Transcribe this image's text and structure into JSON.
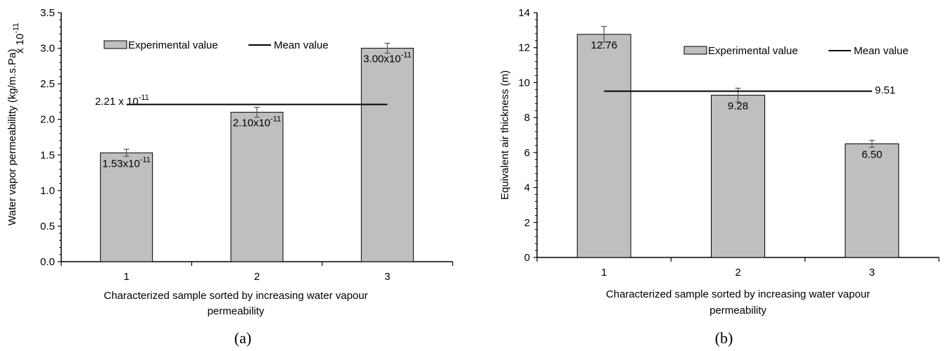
{
  "chart_data": [
    {
      "type": "bar",
      "panel_label": "(a)",
      "categories": [
        "1",
        "2",
        "3"
      ],
      "values": [
        1.53,
        2.1,
        3.0
      ],
      "error": [
        0.05,
        0.07,
        0.07
      ],
      "data_labels": [
        {
          "mantissa": "1.53x10",
          "exp": "-11"
        },
        {
          "mantissa": "2.10x10",
          "exp": "-11"
        },
        {
          "mantissa": "3.00x10",
          "exp": "-11"
        }
      ],
      "mean": 2.21,
      "mean_label": {
        "mantissa": "2.21 x 10",
        "exp": "-11"
      },
      "scale_label": {
        "mantissa": "x 10",
        "exp": "-11"
      },
      "ylabel": "Water vapor permeabilitty (kg/m.s.Pa)",
      "xlabel_lines": [
        "Characterized sample sorted by increasing water vapour",
        "permeability"
      ],
      "ylim": [
        0,
        3.5
      ],
      "yticks": [
        "0.0",
        "0.5",
        "1.0",
        "1.5",
        "2.0",
        "2.5",
        "3.0",
        "3.5"
      ],
      "legend": {
        "bar": "Experimental value",
        "line": "Mean value",
        "position": "top"
      },
      "bar_color": "#bfbfbf"
    },
    {
      "type": "bar",
      "panel_label": "(b)",
      "categories": [
        "1",
        "2",
        "3"
      ],
      "values": [
        12.76,
        9.28,
        6.5
      ],
      "error": [
        0.45,
        0.4,
        0.2
      ],
      "data_labels": [
        {
          "mantissa": "12.76",
          "exp": ""
        },
        {
          "mantissa": "9.28",
          "exp": ""
        },
        {
          "mantissa": "6.50",
          "exp": ""
        }
      ],
      "mean": 9.51,
      "mean_label": {
        "mantissa": "9.51",
        "exp": ""
      },
      "ylabel": "Equivalent air thickness (m)",
      "xlabel_lines": [
        "Characterized sample sorted by increasing water vapour",
        "permeability"
      ],
      "ylim": [
        0,
        14
      ],
      "yticks": [
        "0",
        "2",
        "4",
        "6",
        "8",
        "10",
        "12",
        "14"
      ],
      "legend": {
        "bar": "Experimental value",
        "line": "Mean value",
        "position": "top-right"
      },
      "bar_color": "#bfbfbf"
    }
  ]
}
